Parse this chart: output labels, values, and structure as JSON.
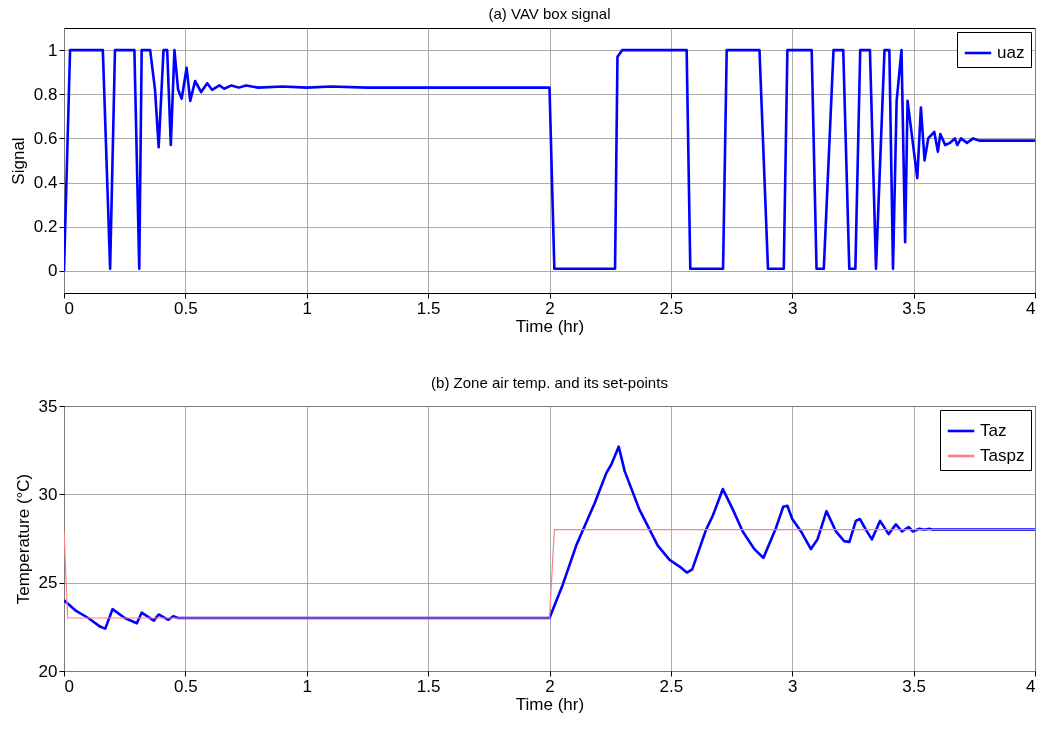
{
  "chart_data": [
    {
      "type": "line",
      "title": "(a) VAV box signal",
      "xlabel": "Time (hr)",
      "ylabel": "Signal",
      "xlim": [
        0,
        4
      ],
      "xticks": [
        0,
        0.5,
        1,
        1.5,
        2,
        2.5,
        3,
        3.5,
        4
      ],
      "ylim": [
        -0.1,
        1.1
      ],
      "yticks": [
        0,
        0.2,
        0.4,
        0.6,
        0.8,
        1
      ],
      "grid": true,
      "legend": "top right",
      "series": [
        {
          "name": "uaz",
          "color": "#0000ff",
          "x": [
            0,
            0.025,
            0.16,
            0.19,
            0.21,
            0.29,
            0.31,
            0.32,
            0.355,
            0.375,
            0.39,
            0.41,
            0.425,
            0.44,
            0.455,
            0.47,
            0.485,
            0.505,
            0.52,
            0.54,
            0.565,
            0.59,
            0.61,
            0.64,
            0.66,
            0.69,
            0.72,
            0.75,
            0.8,
            0.9,
            1.0,
            1.1,
            1.25,
            2.0,
            2.02,
            2.27,
            2.28,
            2.3,
            2.565,
            2.58,
            2.715,
            2.73,
            2.865,
            2.9,
            2.965,
            2.98,
            3.08,
            3.1,
            3.13,
            3.17,
            3.21,
            3.235,
            3.26,
            3.28,
            3.32,
            3.345,
            3.38,
            3.4,
            3.415,
            3.43,
            3.45,
            3.465,
            3.475,
            3.515,
            3.53,
            3.545,
            3.56,
            3.585,
            3.6,
            3.61,
            3.63,
            3.65,
            3.67,
            3.68,
            3.695,
            3.72,
            3.745,
            3.77,
            4
          ],
          "values": [
            0,
            1,
            1,
            0.01,
            1,
            1,
            0.01,
            1,
            1,
            0.82,
            0.56,
            1,
            1,
            0.57,
            1,
            0.82,
            0.78,
            0.92,
            0.77,
            0.86,
            0.81,
            0.85,
            0.82,
            0.84,
            0.825,
            0.84,
            0.83,
            0.84,
            0.83,
            0.835,
            0.83,
            0.835,
            0.83,
            0.83,
            0.01,
            0.01,
            0.97,
            1,
            1,
            0.01,
            0.01,
            1,
            1,
            0.01,
            0.01,
            1,
            1,
            0.01,
            0.01,
            1,
            1,
            0.01,
            0.01,
            1,
            1,
            0.01,
            1,
            1,
            0.01,
            0.77,
            1,
            0.13,
            0.77,
            0.42,
            0.74,
            0.5,
            0.6,
            0.63,
            0.54,
            0.62,
            0.57,
            0.58,
            0.6,
            0.57,
            0.6,
            0.58,
            0.6,
            0.59,
            0.59
          ]
        }
      ]
    },
    {
      "type": "line",
      "title": "(b) Zone air temp. and its set-points",
      "xlabel": "Time (hr)",
      "ylabel": "Temperature (°C)",
      "xlim": [
        0,
        4
      ],
      "xticks": [
        0,
        0.5,
        1,
        1.5,
        2,
        2.5,
        3,
        3.5,
        4
      ],
      "ylim": [
        20,
        35
      ],
      "yticks": [
        20,
        25,
        30,
        35
      ],
      "grid": true,
      "legend": "top right",
      "series": [
        {
          "name": "Taz",
          "color": "#0000ff",
          "x": [
            0,
            0.05,
            0.1,
            0.15,
            0.17,
            0.2,
            0.25,
            0.3,
            0.32,
            0.37,
            0.39,
            0.43,
            0.45,
            0.47,
            0.5,
            2.0,
            2.055,
            2.11,
            2.186,
            2.234,
            2.255,
            2.285,
            2.31,
            2.37,
            2.446,
            2.494,
            2.542,
            2.566,
            2.588,
            2.645,
            2.673,
            2.714,
            2.755,
            2.796,
            2.844,
            2.881,
            2.933,
            2.963,
            2.98,
            3.0,
            3.036,
            3.077,
            3.104,
            3.141,
            3.18,
            3.214,
            3.235,
            3.262,
            3.279,
            3.303,
            3.328,
            3.362,
            3.397,
            3.427,
            3.452,
            3.48,
            3.496,
            3.524,
            3.544,
            3.565,
            3.579,
            4
          ],
          "values": [
            24.0,
            23.4,
            23.0,
            22.5,
            22.4,
            23.5,
            23.0,
            22.7,
            23.3,
            22.85,
            23.2,
            22.9,
            23.1,
            23.0,
            23.0,
            23.0,
            24.9,
            27.1,
            29.5,
            31.2,
            31.7,
            32.7,
            31.3,
            29.15,
            27.1,
            26.3,
            25.85,
            25.57,
            25.75,
            28.0,
            28.8,
            30.3,
            29.15,
            27.9,
            26.9,
            26.4,
            28.1,
            29.3,
            29.35,
            28.6,
            27.9,
            26.9,
            27.45,
            29.05,
            27.9,
            27.35,
            27.3,
            28.5,
            28.6,
            28.0,
            27.45,
            28.5,
            27.75,
            28.3,
            27.9,
            28.15,
            27.9,
            28.05,
            28.0,
            28.05,
            28.0,
            28.0
          ]
        },
        {
          "name": "Taspz",
          "color": "#ff8080",
          "x": [
            0,
            0.015,
            2.0,
            2.02,
            4
          ],
          "values": [
            28,
            23,
            23,
            28,
            28
          ]
        }
      ]
    }
  ]
}
